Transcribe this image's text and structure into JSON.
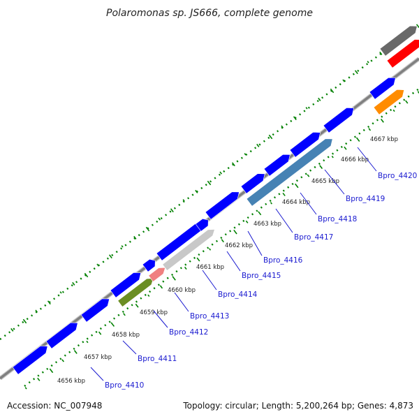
{
  "title": "Polaromonas sp. JS666, complete genome",
  "footer": {
    "accession": "Accession: NC_007948",
    "topology": "Topology: circular; Length: 5,200,264 bp; Genes: 4,873"
  },
  "kbp_labels": [
    "4656 kbp",
    "4657 kbp",
    "4658 kbp",
    "4659 kbp",
    "4660 kbp",
    "4661 kbp",
    "4662 kbp",
    "4663 kbp",
    "4664 kbp",
    "4665 kbp",
    "4666 kbp",
    "4667 kbp"
  ],
  "gene_labels": [
    "Bpro_4410",
    "Bpro_4411",
    "Bpro_4412",
    "Bpro_4413",
    "Bpro_4414",
    "Bpro_4415",
    "Bpro_4416",
    "Bpro_4417",
    "Bpro_4418",
    "Bpro_4419",
    "Bpro_4420"
  ],
  "colors": {
    "backbone": "#808080",
    "cds": "#0000ff",
    "gc_skew": "#008000",
    "gray_feature": "#c8c8c8",
    "green_feature": "#6b8e23",
    "pink_feature": "#f08080",
    "steelblue_feature": "#4682b4",
    "orange_feature": "#ff8c00",
    "red_feature": "#ff0000",
    "darkgray_feature": "#696969",
    "label": "#1a1ad0"
  }
}
